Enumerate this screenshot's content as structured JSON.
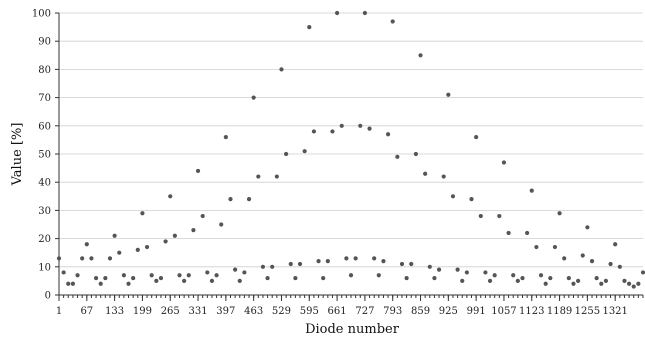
{
  "chart_data": {
    "type": "scatter",
    "title": "",
    "xlabel": "Diode number",
    "ylabel": "Value [%]",
    "xlim": [
      1,
      1387
    ],
    "ylim": [
      0,
      100
    ],
    "grid": "horizontal",
    "legend": "none",
    "point_color": "#555555",
    "x_ticks": [
      1,
      67,
      133,
      199,
      265,
      331,
      397,
      463,
      529,
      595,
      661,
      727,
      793,
      859,
      925,
      991,
      1057,
      1123,
      1189,
      1255,
      1321
    ],
    "y_ticks": [
      0,
      10,
      20,
      30,
      40,
      50,
      60,
      70,
      80,
      90,
      100
    ],
    "series": [
      {
        "x": [
          1,
          12,
          23,
          34,
          45,
          56,
          67,
          78,
          89,
          100,
          111,
          122,
          133,
          144,
          155,
          166,
          177,
          188,
          199,
          210,
          221,
          232,
          243,
          254,
          265,
          276,
          287,
          298,
          309,
          320,
          331,
          342,
          353,
          364,
          375,
          386,
          397,
          408,
          419,
          430,
          441,
          452,
          463,
          474,
          485,
          496,
          507,
          518,
          529,
          540,
          551,
          562,
          573,
          584,
          595,
          606,
          617,
          628,
          639,
          650,
          661,
          672,
          683,
          694,
          705,
          716,
          727,
          738,
          749,
          760,
          771,
          782,
          793,
          804,
          815,
          826,
          837,
          848,
          859,
          870,
          881,
          892,
          903,
          914,
          925,
          936,
          947,
          958,
          969,
          980,
          991,
          1002,
          1013,
          1024,
          1035,
          1046,
          1057,
          1068,
          1079,
          1090,
          1101,
          1112,
          1123,
          1134,
          1145,
          1156,
          1167,
          1178,
          1189,
          1200,
          1211,
          1222,
          1233,
          1244,
          1255,
          1266,
          1277,
          1288,
          1299,
          1310,
          1321,
          1332,
          1343,
          1354,
          1365,
          1376,
          1387
        ],
        "y": [
          13,
          8,
          4,
          4,
          7,
          13,
          18,
          13,
          6,
          4,
          6,
          13,
          21,
          15,
          7,
          4,
          6,
          16,
          29,
          17,
          7,
          5,
          6,
          19,
          35,
          21,
          7,
          5,
          7,
          23,
          44,
          28,
          8,
          5,
          7,
          25,
          56,
          34,
          9,
          5,
          8,
          34,
          70,
          42,
          10,
          6,
          10,
          42,
          80,
          50,
          11,
          6,
          11,
          51,
          95,
          58,
          12,
          6,
          12,
          58,
          100,
          60,
          13,
          7,
          13,
          60,
          100,
          59,
          13,
          7,
          12,
          57,
          97,
          49,
          11,
          6,
          11,
          50,
          85,
          43,
          10,
          6,
          9,
          42,
          71,
          35,
          9,
          5,
          8,
          34,
          56,
          28,
          8,
          5,
          7,
          28,
          47,
          22,
          7,
          5,
          6,
          22,
          37,
          17,
          7,
          4,
          6,
          17,
          29,
          13,
          6,
          4,
          5,
          14,
          24,
          12,
          6,
          4,
          5,
          11,
          18,
          10,
          5,
          4,
          3,
          4,
          8
        ]
      }
    ]
  }
}
